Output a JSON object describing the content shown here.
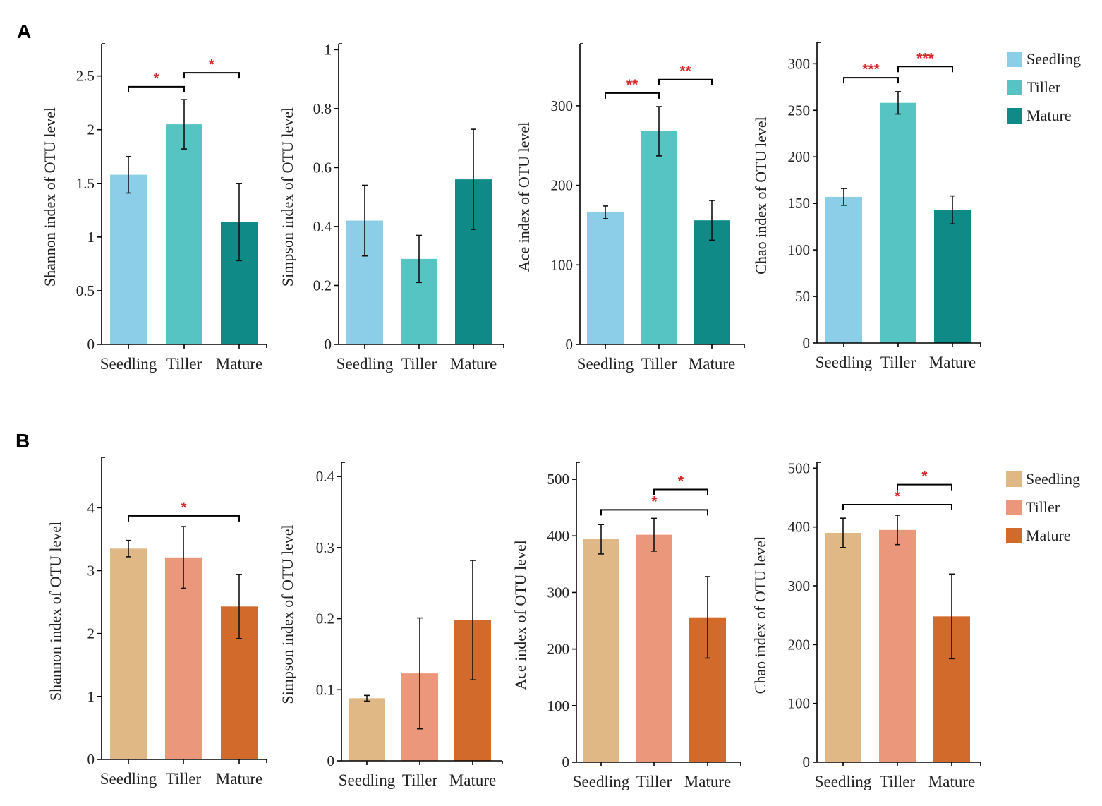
{
  "panels": [
    {
      "letter": "A",
      "legend": [
        {
          "name": "Seedling",
          "color": "#8ccde8"
        },
        {
          "name": "Tiller",
          "color": "#57c4c4"
        },
        {
          "name": "Mature",
          "color": "#0f8a87"
        }
      ]
    },
    {
      "letter": "B",
      "legend": [
        {
          "name": "Seedling",
          "color": "#e0b886"
        },
        {
          "name": "Tiller",
          "color": "#eb977c"
        },
        {
          "name": "Mature",
          "color": "#d26a2b"
        }
      ]
    }
  ],
  "chart_data": [
    {
      "type": "bar",
      "panel": "A",
      "title": "",
      "categories": [
        "Seedling",
        "Tiller",
        "Mature"
      ],
      "values": [
        1.58,
        2.05,
        1.14
      ],
      "errors": [
        0.17,
        0.23,
        0.36
      ],
      "ylabel": "Shannon index of OTU level",
      "xlabel": "",
      "ylim": [
        0,
        2.8
      ],
      "yticks": [
        0,
        0.5,
        1,
        1.5,
        2,
        2.5
      ],
      "ytick_labels": [
        "0",
        "0.5",
        "1",
        "1.5",
        "2",
        "2.5"
      ],
      "colors": [
        "#8ccde8",
        "#57c4c4",
        "#0f8a87"
      ],
      "significance": [
        {
          "from": 0,
          "to": 1,
          "label": "*",
          "y": 2.4
        },
        {
          "from": 1,
          "to": 2,
          "label": "*",
          "y": 2.53
        }
      ]
    },
    {
      "type": "bar",
      "panel": "A",
      "title": "",
      "categories": [
        "Seedling",
        "Tiller",
        "Mature"
      ],
      "values": [
        0.42,
        0.29,
        0.56
      ],
      "errors": [
        0.12,
        0.08,
        0.17
      ],
      "ylabel": "Simpson index of OTU level",
      "xlabel": "",
      "ylim": [
        0,
        1.02
      ],
      "yticks": [
        0,
        0.2,
        0.4,
        0.6,
        0.8,
        1
      ],
      "ytick_labels": [
        "0",
        "0.2",
        "0.4",
        "0.6",
        "0.8",
        "1"
      ],
      "colors": [
        "#8ccde8",
        "#57c4c4",
        "#0f8a87"
      ],
      "significance": []
    },
    {
      "type": "bar",
      "panel": "A",
      "title": "",
      "categories": [
        "Seedling",
        "Tiller",
        "Mature"
      ],
      "values": [
        166,
        268,
        156
      ],
      "errors": [
        8,
        31,
        25
      ],
      "ylabel": "Ace index of OTU level",
      "xlabel": "",
      "ylim": [
        0,
        378
      ],
      "yticks": [
        0,
        100,
        200,
        300
      ],
      "ytick_labels": [
        "0",
        "100",
        "200",
        "300"
      ],
      "colors": [
        "#8ccde8",
        "#57c4c4",
        "#0f8a87"
      ],
      "significance": [
        {
          "from": 0,
          "to": 1,
          "label": "**",
          "y": 316
        },
        {
          "from": 1,
          "to": 2,
          "label": "**",
          "y": 333
        }
      ]
    },
    {
      "type": "bar",
      "panel": "A",
      "title": "",
      "categories": [
        "Seedling",
        "Tiller",
        "Mature"
      ],
      "values": [
        157,
        258,
        143
      ],
      "errors": [
        9,
        12,
        15
      ],
      "ylabel": "Chao index of OTU level",
      "xlabel": "",
      "ylim": [
        0,
        323
      ],
      "yticks": [
        0,
        50,
        100,
        150,
        200,
        250,
        300
      ],
      "ytick_labels": [
        "0",
        "50",
        "100",
        "150",
        "200",
        "250",
        "300"
      ],
      "colors": [
        "#8ccde8",
        "#57c4c4",
        "#0f8a87"
      ],
      "significance": [
        {
          "from": 0,
          "to": 1,
          "label": "***",
          "y": 285
        },
        {
          "from": 1,
          "to": 2,
          "label": "***",
          "y": 297
        }
      ]
    },
    {
      "type": "bar",
      "panel": "B",
      "title": "",
      "categories": [
        "Seedling",
        "Tiller",
        "Mature"
      ],
      "values": [
        3.35,
        3.21,
        2.43
      ],
      "errors": [
        0.13,
        0.49,
        0.51
      ],
      "ylabel": "Shannon index of OTU level",
      "xlabel": "",
      "ylim": [
        0,
        4.8
      ],
      "yticks": [
        0,
        1,
        2,
        3,
        4
      ],
      "ytick_labels": [
        "0",
        "1",
        "2",
        "3",
        "4"
      ],
      "colors": [
        "#e0b886",
        "#eb977c",
        "#d26a2b"
      ],
      "significance": [
        {
          "from": 0,
          "to": 2,
          "label": "*",
          "y": 3.87
        }
      ]
    },
    {
      "type": "bar",
      "panel": "B",
      "title": "",
      "categories": [
        "Seedling",
        "Tiller",
        "Mature"
      ],
      "values": [
        0.088,
        0.123,
        0.198
      ],
      "errors": [
        0.004,
        0.078,
        0.084
      ],
      "ylabel": "Simpson index of OTU level",
      "xlabel": "",
      "ylim": [
        0,
        0.42
      ],
      "yticks": [
        0,
        0.1,
        0.2,
        0.3,
        0.4
      ],
      "ytick_labels": [
        "0",
        "0.1",
        "0.2",
        "0.3",
        "0.4"
      ],
      "colors": [
        "#e0b886",
        "#eb977c",
        "#d26a2b"
      ],
      "significance": []
    },
    {
      "type": "bar",
      "panel": "B",
      "title": "",
      "categories": [
        "Seedling",
        "Tiller",
        "Mature"
      ],
      "values": [
        394,
        402,
        256
      ],
      "errors": [
        26,
        29,
        72
      ],
      "ylabel": "Ace index of OTU level",
      "xlabel": "",
      "ylim": [
        0,
        530
      ],
      "yticks": [
        0,
        100,
        200,
        300,
        400,
        500
      ],
      "ytick_labels": [
        "0",
        "100",
        "200",
        "300",
        "400",
        "500"
      ],
      "colors": [
        "#e0b886",
        "#eb977c",
        "#d26a2b"
      ],
      "significance": [
        {
          "from": 1,
          "to": 2,
          "label": "*",
          "y": 482
        },
        {
          "from": 0,
          "to": 2,
          "label": "*",
          "y": 446
        }
      ]
    },
    {
      "type": "bar",
      "panel": "B",
      "title": "",
      "categories": [
        "Seedling",
        "Tiller",
        "Mature"
      ],
      "values": [
        390,
        395,
        248
      ],
      "errors": [
        25,
        25,
        72
      ],
      "ylabel": "Chao index of OTU level",
      "xlabel": "",
      "ylim": [
        0,
        510
      ],
      "yticks": [
        0,
        100,
        200,
        300,
        400,
        500
      ],
      "ytick_labels": [
        "0",
        "100",
        "200",
        "300",
        "400",
        "500"
      ],
      "colors": [
        "#e0b886",
        "#eb977c",
        "#d26a2b"
      ],
      "significance": [
        {
          "from": 1,
          "to": 2,
          "label": "*",
          "y": 472
        },
        {
          "from": 0,
          "to": 2,
          "label": "*",
          "y": 438
        }
      ]
    }
  ]
}
